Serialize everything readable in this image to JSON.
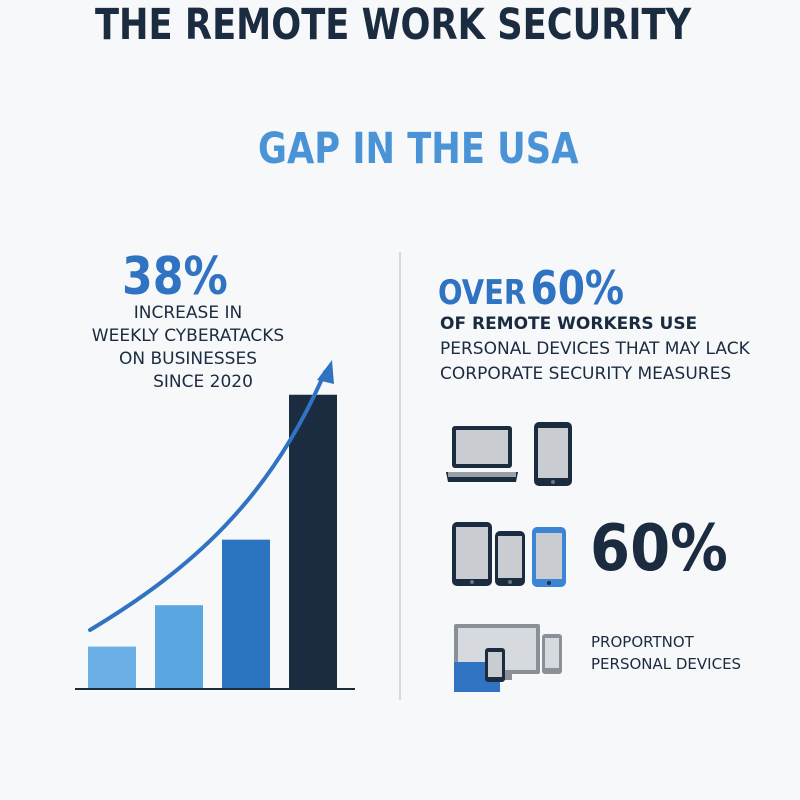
{
  "title": {
    "line1": "THE REMOTE WORK SECURITY",
    "line2": "GAP IN THE USA"
  },
  "left_stat": {
    "value": "38%",
    "lines": [
      "INCREASE IN",
      "WEEKLY CYBERATACKS",
      "ON BUSINESSES",
      "SINCE 2020"
    ]
  },
  "chart_data": {
    "type": "bar",
    "categories": [
      "",
      "",
      "",
      ""
    ],
    "values": [
      12,
      24,
      43,
      85
    ],
    "colors": [
      "#6ab0e6",
      "#5aa6e0",
      "#2c74c0",
      "#1b2b40"
    ],
    "title": "",
    "xlabel": "",
    "ylabel": "",
    "ylim": [
      0,
      100
    ],
    "trend_arrow": true
  },
  "right_stat": {
    "over": "OVER",
    "value": "60%",
    "line1": "OF REMOTE WORKERS USE",
    "line2": "PERSONAL DEVICES THAT MAY LACK",
    "line3": "CORPORATE SECURITY MEASURES"
  },
  "device_row_value": "60%",
  "caption": {
    "line1": "PROPORTNOT",
    "line2": "PERSONAL DEVICES"
  },
  "icons": [
    "laptop-icon",
    "tablet-icon",
    "tablet-icon",
    "phone-icon",
    "phone-icon",
    "monitor-devices-icon"
  ],
  "colors": {
    "navy": "#1b2b40",
    "blue": "#2f73c2",
    "light_blue": "#4a93d6"
  }
}
